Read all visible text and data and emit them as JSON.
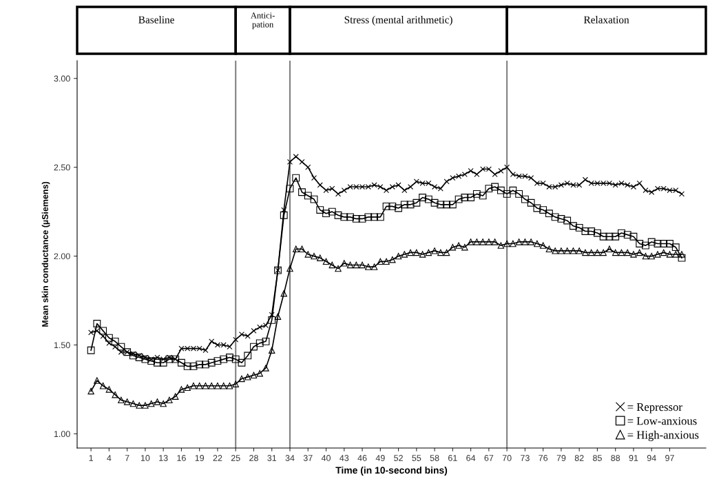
{
  "chart_data": {
    "type": "line",
    "xlabel": "Time (in 10-second bins)",
    "ylabel": "Mean skin conductance (µSiemens)",
    "x": [
      1,
      2,
      3,
      4,
      5,
      6,
      7,
      8,
      9,
      10,
      11,
      12,
      13,
      14,
      15,
      16,
      17,
      18,
      19,
      20,
      21,
      22,
      23,
      24,
      25,
      26,
      27,
      28,
      29,
      30,
      31,
      32,
      33,
      34,
      35,
      36,
      37,
      38,
      39,
      40,
      41,
      42,
      43,
      44,
      45,
      46,
      47,
      48,
      49,
      50,
      51,
      52,
      53,
      54,
      55,
      56,
      57,
      58,
      59,
      60,
      61,
      62,
      63,
      64,
      65,
      66,
      67,
      68,
      69,
      70,
      71,
      72,
      73,
      74,
      75,
      76,
      77,
      78,
      79,
      80,
      81,
      82,
      83,
      84,
      85,
      86,
      87,
      88,
      89,
      90,
      91,
      92,
      93,
      94,
      95,
      96,
      97,
      98,
      99
    ],
    "series": [
      {
        "name": "= Repressor",
        "color": "#000000",
        "marker": "cross",
        "values": [
          1.57,
          1.58,
          1.55,
          1.51,
          1.49,
          1.46,
          1.46,
          1.45,
          1.44,
          1.43,
          1.42,
          1.43,
          1.42,
          1.43,
          1.42,
          1.48,
          1.48,
          1.48,
          1.48,
          1.47,
          1.52,
          1.5,
          1.5,
          1.49,
          1.53,
          1.56,
          1.55,
          1.58,
          1.6,
          1.61,
          1.67,
          1.92,
          2.26,
          2.53,
          2.56,
          2.53,
          2.5,
          2.44,
          2.4,
          2.37,
          2.38,
          2.35,
          2.37,
          2.39,
          2.39,
          2.39,
          2.39,
          2.4,
          2.39,
          2.37,
          2.39,
          2.4,
          2.37,
          2.39,
          2.42,
          2.41,
          2.41,
          2.39,
          2.38,
          2.42,
          2.44,
          2.45,
          2.46,
          2.48,
          2.46,
          2.49,
          2.49,
          2.46,
          2.48,
          2.5,
          2.46,
          2.45,
          2.45,
          2.44,
          2.41,
          2.41,
          2.39,
          2.39,
          2.4,
          2.41,
          2.4,
          2.4,
          2.43,
          2.41,
          2.41,
          2.41,
          2.41,
          2.4,
          2.41,
          2.4,
          2.39,
          2.41,
          2.37,
          2.36,
          2.38,
          2.38,
          2.37,
          2.37,
          2.35
        ]
      },
      {
        "name": "= Low-anxious",
        "color": "#000000",
        "marker": "square",
        "values": [
          1.47,
          1.62,
          1.58,
          1.54,
          1.52,
          1.49,
          1.46,
          1.44,
          1.43,
          1.42,
          1.41,
          1.4,
          1.4,
          1.42,
          1.42,
          1.4,
          1.38,
          1.38,
          1.39,
          1.39,
          1.4,
          1.41,
          1.42,
          1.43,
          1.42,
          1.4,
          1.44,
          1.49,
          1.51,
          1.52,
          1.64,
          1.92,
          2.23,
          2.38,
          2.44,
          2.36,
          2.34,
          2.32,
          2.26,
          2.24,
          2.25,
          2.23,
          2.22,
          2.22,
          2.21,
          2.21,
          2.22,
          2.22,
          2.22,
          2.28,
          2.28,
          2.27,
          2.29,
          2.29,
          2.3,
          2.33,
          2.32,
          2.3,
          2.29,
          2.29,
          2.29,
          2.32,
          2.33,
          2.33,
          2.35,
          2.34,
          2.38,
          2.39,
          2.37,
          2.35,
          2.37,
          2.35,
          2.32,
          2.3,
          2.27,
          2.26,
          2.24,
          2.22,
          2.21,
          2.2,
          2.17,
          2.16,
          2.14,
          2.14,
          2.13,
          2.11,
          2.11,
          2.11,
          2.13,
          2.12,
          2.11,
          2.07,
          2.06,
          2.08,
          2.07,
          2.07,
          2.07,
          2.05,
          1.99
        ]
      },
      {
        "name": "= High-anxious",
        "color": "#000000",
        "marker": "triangle",
        "values": [
          1.24,
          1.3,
          1.27,
          1.25,
          1.22,
          1.19,
          1.18,
          1.17,
          1.16,
          1.16,
          1.17,
          1.18,
          1.17,
          1.19,
          1.21,
          1.25,
          1.26,
          1.27,
          1.27,
          1.27,
          1.27,
          1.27,
          1.27,
          1.27,
          1.28,
          1.31,
          1.32,
          1.33,
          1.34,
          1.37,
          1.47,
          1.66,
          1.79,
          1.93,
          2.04,
          2.04,
          2.01,
          2.0,
          1.99,
          1.97,
          1.95,
          1.93,
          1.96,
          1.95,
          1.95,
          1.95,
          1.94,
          1.94,
          1.97,
          1.97,
          1.98,
          2.0,
          2.01,
          2.02,
          2.02,
          2.01,
          2.02,
          2.03,
          2.02,
          2.02,
          2.05,
          2.06,
          2.05,
          2.08,
          2.08,
          2.08,
          2.08,
          2.08,
          2.06,
          2.07,
          2.07,
          2.08,
          2.08,
          2.08,
          2.07,
          2.06,
          2.04,
          2.03,
          2.03,
          2.03,
          2.03,
          2.03,
          2.02,
          2.02,
          2.02,
          2.02,
          2.04,
          2.02,
          2.02,
          2.02,
          2.01,
          2.02,
          2.0,
          2.0,
          2.01,
          2.02,
          2.01,
          2.01,
          2.01
        ]
      }
    ],
    "xlim": [
      -1.3,
      103
    ],
    "xticks": [
      1,
      4,
      7,
      10,
      13,
      16,
      19,
      22,
      25,
      28,
      31,
      34,
      37,
      40,
      43,
      46,
      49,
      52,
      55,
      58,
      61,
      64,
      67,
      70,
      73,
      76,
      79,
      82,
      85,
      88,
      91,
      94,
      97
    ],
    "ylim": [
      0.92,
      3.1
    ],
    "yticks": [
      {
        "value": 1,
        "label": "1.00"
      },
      {
        "value": 1.5,
        "label": "1.50"
      },
      {
        "value": 2,
        "label": "2.00"
      },
      {
        "value": 2.5,
        "label": "2.50"
      },
      {
        "value": 3,
        "label": "3.00"
      }
    ],
    "ref_lines": [
      {
        "axis": "x",
        "value": 25,
        "color": "#808080"
      },
      {
        "axis": "x",
        "value": 34,
        "color": "#808080"
      },
      {
        "axis": "x",
        "value": 70,
        "color": "#808080"
      }
    ],
    "annotations": [
      "Baseline",
      "Antici-\npation",
      "Stress (mental arithmetic)",
      "Relaxation"
    ],
    "legend": "bottom right",
    "grid": false
  }
}
